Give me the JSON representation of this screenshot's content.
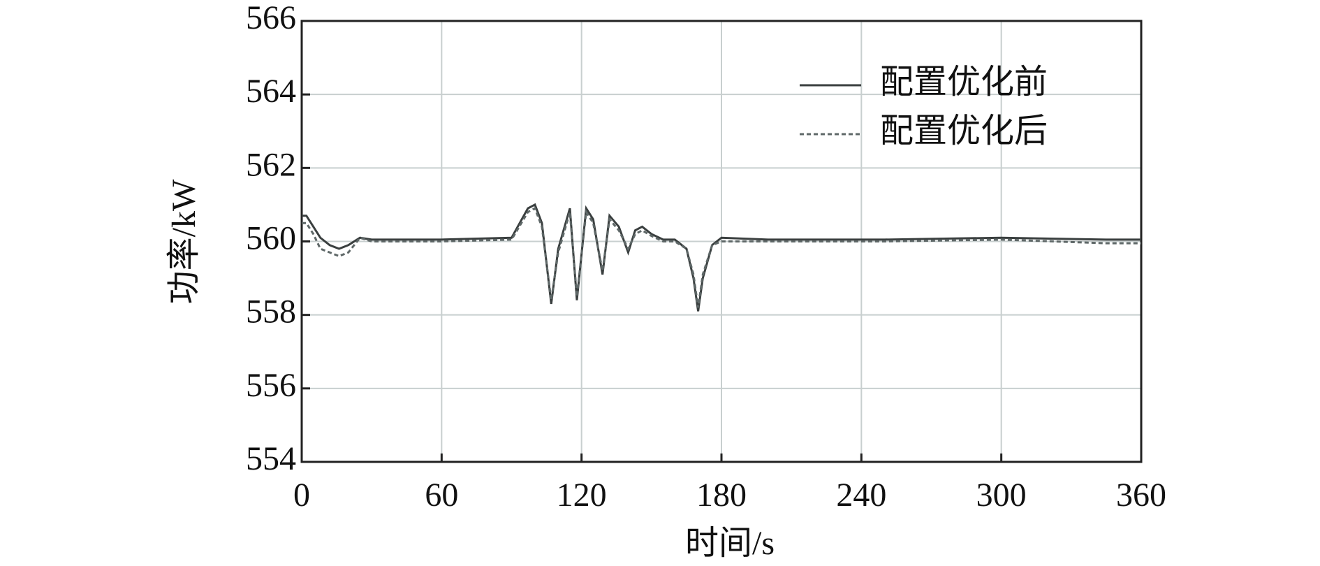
{
  "chart_data": {
    "type": "line",
    "xlabel": "时间/s",
    "ylabel": "功率/kW",
    "x": [
      0,
      2,
      5,
      8,
      12,
      16,
      20,
      25,
      30,
      60,
      90,
      97,
      100,
      103,
      107,
      110,
      115,
      118,
      122,
      125,
      129,
      132,
      136,
      140,
      143,
      146,
      150,
      155,
      160,
      165,
      168,
      170,
      172,
      176,
      180,
      200,
      250,
      300,
      345,
      360
    ],
    "series": [
      {
        "name": "配置优化前",
        "color": "#3a3f3f",
        "dash": false,
        "values": [
          560.7,
          560.7,
          560.4,
          560.1,
          559.9,
          559.8,
          559.9,
          560.1,
          560.05,
          560.05,
          560.1,
          560.9,
          561.0,
          560.5,
          558.3,
          559.8,
          560.9,
          558.4,
          560.9,
          560.6,
          559.1,
          560.7,
          560.4,
          559.7,
          560.3,
          560.4,
          560.2,
          560.05,
          560.05,
          559.8,
          559.0,
          558.1,
          559.0,
          559.9,
          560.1,
          560.05,
          560.05,
          560.1,
          560.05,
          560.05
        ]
      },
      {
        "name": "配置优化后",
        "color": "#5f6868",
        "dash": true,
        "values": [
          560.5,
          560.5,
          560.2,
          559.8,
          559.7,
          559.6,
          559.7,
          560.1,
          560.0,
          560.0,
          560.05,
          560.8,
          560.9,
          560.4,
          558.4,
          559.7,
          560.8,
          558.5,
          560.8,
          560.5,
          559.2,
          560.6,
          560.3,
          559.8,
          560.2,
          560.3,
          560.15,
          560.0,
          560.0,
          559.8,
          559.1,
          558.2,
          559.1,
          559.9,
          560.0,
          560.0,
          560.0,
          560.05,
          559.95,
          559.95
        ]
      }
    ],
    "xlim": [
      0,
      360
    ],
    "xticks": [
      0,
      60,
      120,
      180,
      240,
      300,
      360
    ],
    "ylim": [
      554,
      566
    ],
    "yticks": [
      554,
      556,
      558,
      560,
      562,
      564,
      566
    ],
    "grid": true,
    "legend": "upper-right"
  }
}
